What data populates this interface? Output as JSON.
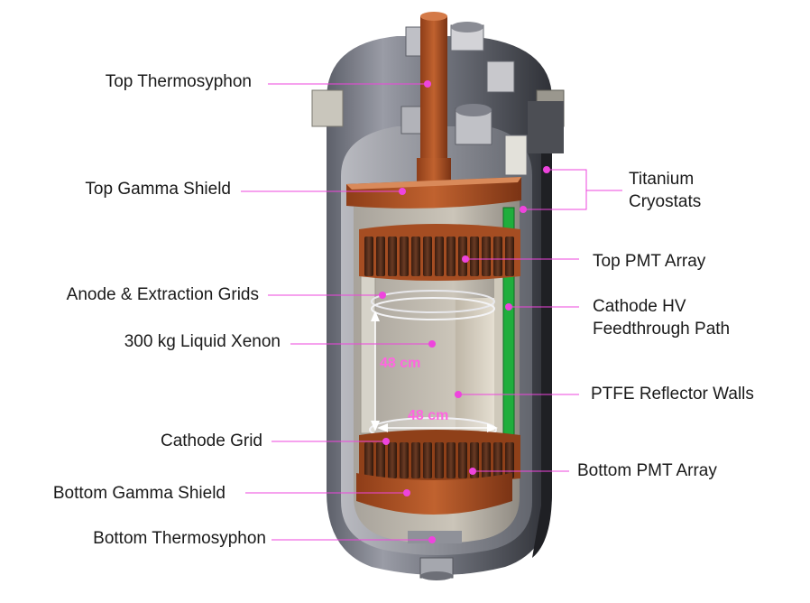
{
  "labels": {
    "top_thermosyphon": "Top Thermosyphon",
    "top_gamma_shield": "Top Gamma Shield",
    "anode_extraction_grids": "Anode & Extraction Grids",
    "liquid_xenon": "300 kg Liquid Xenon",
    "cathode_grid": "Cathode Grid",
    "bottom_gamma_shield": "Bottom Gamma Shield",
    "bottom_thermosyphon": "Bottom Thermosyphon",
    "titanium_cryostats_line1": "Titanium",
    "titanium_cryostats_line2": "Cryostats",
    "top_pmt_array": "Top PMT Array",
    "cathode_hv_line1": "Cathode HV",
    "cathode_hv_line2": "Feedthrough Path",
    "ptfe_reflector_walls": "PTFE Reflector Walls",
    "bottom_pmt_array": "Bottom PMT Array"
  },
  "dimensions": {
    "height": "48 cm",
    "diameter": "48 cm"
  },
  "colors": {
    "leader": "#ee44dd",
    "copper": "#b5562a",
    "copper_dark": "#7e3616",
    "steel": "#8a8d96",
    "steel_dark": "#4f525a",
    "ptfe": "#d8cfbf",
    "hv_green": "#1fae3c"
  }
}
